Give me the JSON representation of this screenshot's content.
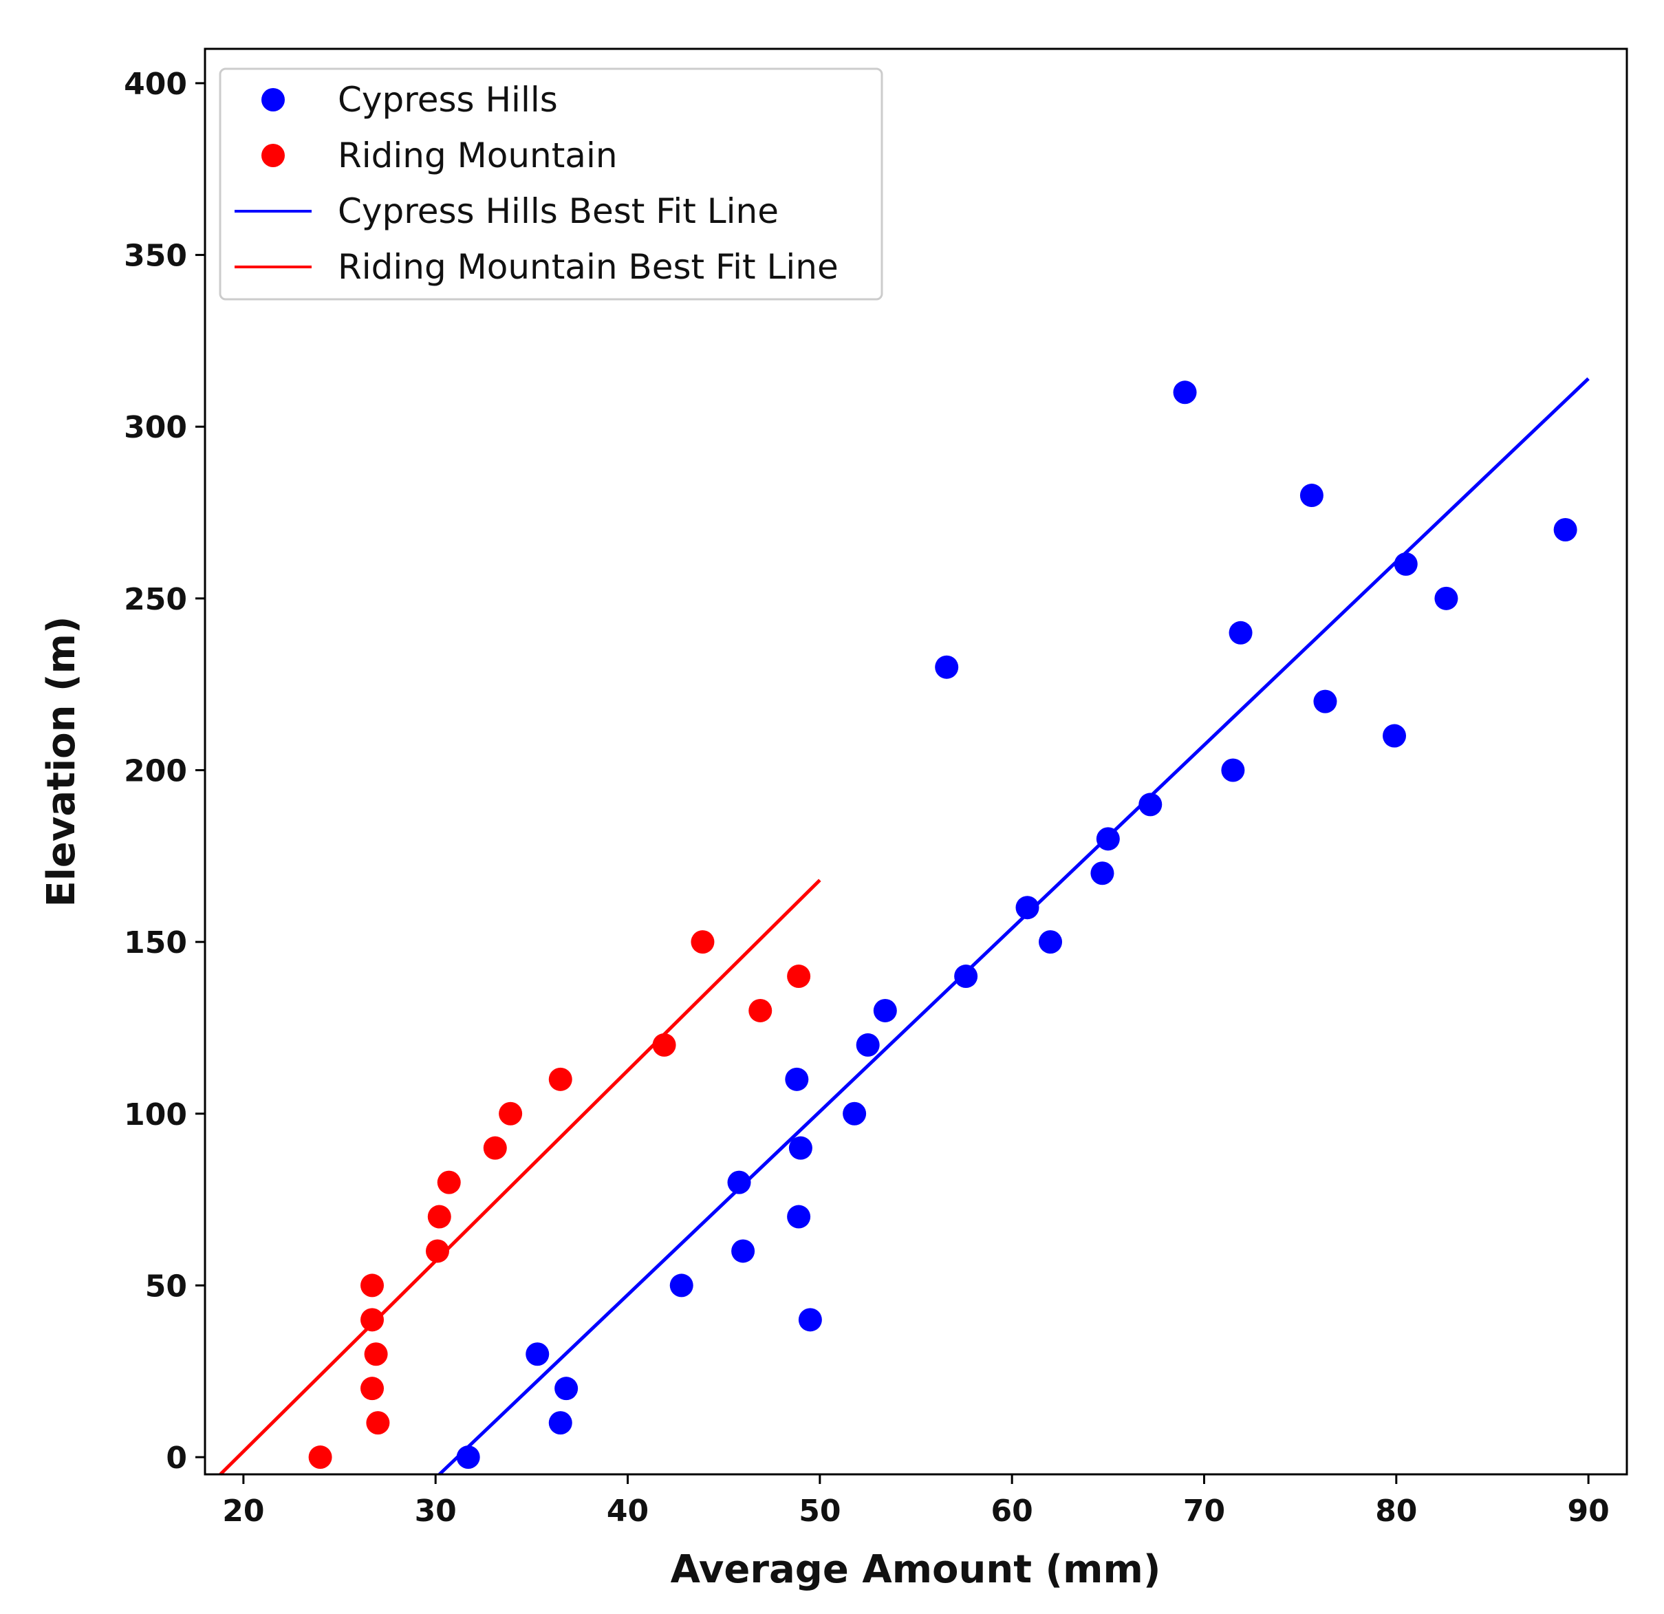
{
  "chart_data": {
    "type": "scatter",
    "title": "",
    "xlabel": "Average Amount (mm)",
    "ylabel": "Elevation (m)",
    "xlim": [
      18,
      92
    ],
    "ylim": [
      -5,
      410
    ],
    "xticks": [
      20,
      30,
      40,
      50,
      60,
      70,
      80,
      90
    ],
    "yticks": [
      0,
      50,
      100,
      150,
      200,
      250,
      300,
      350,
      400
    ],
    "grid": false,
    "legend_position": "top-left",
    "series": [
      {
        "name": "Cypress Hills",
        "kind": "scatter",
        "color": "#0000ff",
        "points": [
          [
            31.7,
            0
          ],
          [
            35.3,
            30
          ],
          [
            36.5,
            10
          ],
          [
            36.8,
            20
          ],
          [
            42.8,
            50
          ],
          [
            45.8,
            80
          ],
          [
            46.0,
            60
          ],
          [
            48.8,
            110
          ],
          [
            48.9,
            70
          ],
          [
            49.0,
            90
          ],
          [
            49.5,
            40
          ],
          [
            51.8,
            100
          ],
          [
            52.5,
            120
          ],
          [
            53.4,
            130
          ],
          [
            56.6,
            230
          ],
          [
            57.6,
            140
          ],
          [
            60.8,
            160
          ],
          [
            62.0,
            150
          ],
          [
            64.7,
            170
          ],
          [
            65.0,
            180
          ],
          [
            67.2,
            190
          ],
          [
            69.0,
            310
          ],
          [
            71.5,
            200
          ],
          [
            71.9,
            240
          ],
          [
            75.6,
            280
          ],
          [
            76.3,
            220
          ],
          [
            79.9,
            210
          ],
          [
            80.5,
            260
          ],
          [
            82.6,
            250
          ],
          [
            88.8,
            270
          ]
        ]
      },
      {
        "name": "Riding Mountain",
        "kind": "scatter",
        "color": "#ff0000",
        "points": [
          [
            24.0,
            0
          ],
          [
            26.7,
            20
          ],
          [
            26.7,
            40
          ],
          [
            26.7,
            50
          ],
          [
            26.9,
            30
          ],
          [
            27.0,
            10
          ],
          [
            30.1,
            60
          ],
          [
            30.2,
            70
          ],
          [
            30.7,
            80
          ],
          [
            33.1,
            90
          ],
          [
            33.9,
            100
          ],
          [
            36.5,
            110
          ],
          [
            41.9,
            120
          ],
          [
            43.9,
            150
          ],
          [
            46.9,
            130
          ],
          [
            48.9,
            140
          ]
        ]
      },
      {
        "name": "Cypress Hills Best Fit Line",
        "kind": "line",
        "color": "#0000ff",
        "points": [
          [
            30.2,
            -5
          ],
          [
            90,
            314
          ]
        ]
      },
      {
        "name": "Riding Mountain Best Fit Line",
        "kind": "line",
        "color": "#ff0000",
        "points": [
          [
            18.8,
            -5
          ],
          [
            50,
            168
          ]
        ]
      }
    ]
  }
}
